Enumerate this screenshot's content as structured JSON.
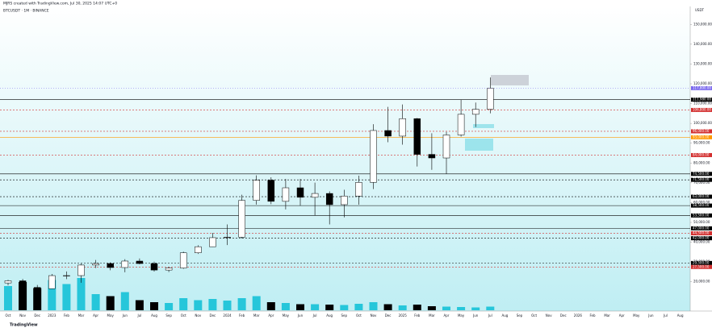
{
  "header": {
    "credit": "MJRS created with TradingView.com, Jul 30, 2025 14:07 UTC+0",
    "symbol": "BTCUSDT · 1M · BINANCE",
    "currency": "USDT",
    "brand": "TradingView"
  },
  "chart_data": {
    "type": "candlestick",
    "categories": [
      "Oct",
      "Nov",
      "Dec",
      "2023",
      "Feb",
      "Mar",
      "Apr",
      "May",
      "Jun",
      "Jul",
      "Aug",
      "Sep",
      "Oct",
      "Nov",
      "Dec",
      "2024",
      "Feb",
      "Mar",
      "Apr",
      "May",
      "Jun",
      "Jul",
      "Aug",
      "Sep",
      "Oct",
      "Nov",
      "Dec",
      "2025",
      "Feb",
      "Mar",
      "Apr",
      "May",
      "Jun",
      "Jul",
      "Aug",
      "Sep",
      "Oct",
      "Nov",
      "Dec",
      "2026",
      "Feb",
      "Mar",
      "Apr",
      "May",
      "Jun",
      "Jul",
      "Aug"
    ],
    "open": [
      19423,
      20495,
      17168,
      16548,
      23125,
      23142,
      28465,
      29233,
      27210,
      30472,
      29232,
      25940,
      26962,
      34639,
      37724,
      42284,
      42580,
      61131,
      71333,
      60636,
      67491,
      62678,
      64619,
      58974,
      63327,
      70215,
      96407,
      93576,
      102405,
      84350,
      82548,
      94172,
      104591,
      107135,
      null,
      null,
      null,
      null,
      null,
      null,
      null,
      null,
      null,
      null,
      null,
      null,
      null
    ],
    "high": [
      20988,
      21480,
      18387,
      23960,
      25250,
      29185,
      31000,
      29820,
      31432,
      31804,
      30176,
      27483,
      35198,
      38450,
      44700,
      48969,
      64000,
      73777,
      72797,
      71979,
      71997,
      70079,
      65660,
      66498,
      73620,
      99588,
      108353,
      109588,
      102750,
      95000,
      95758,
      111980,
      110530,
      123218,
      null,
      null,
      null,
      null,
      null,
      null,
      null,
      null,
      null,
      null,
      null,
      null,
      null
    ],
    "low": [
      18190,
      15476,
      16256,
      16499,
      21351,
      19549,
      26942,
      25811,
      24797,
      28861,
      25166,
      24901,
      26558,
      34097,
      37629,
      38555,
      41884,
      59005,
      59191,
      56552,
      58402,
      53485,
      49000,
      52550,
      58946,
      66835,
      90500,
      89256,
      78258,
      76555,
      74508,
      93345,
      98200,
      105100,
      null,
      null,
      null,
      null,
      null,
      null,
      null,
      null,
      null,
      null,
      null,
      null,
      null
    ],
    "close": [
      20495,
      17168,
      16548,
      23125,
      23142,
      28465,
      29233,
      27210,
      30472,
      29232,
      25940,
      26962,
      34639,
      37724,
      42284,
      42580,
      61131,
      71333,
      60636,
      67491,
      62678,
      64619,
      58974,
      63327,
      70215,
      96407,
      93576,
      102405,
      84350,
      82548,
      94172,
      104591,
      107135,
      117800,
      null,
      null,
      null,
      null,
      null,
      null,
      null,
      null,
      null,
      null,
      null,
      null,
      null
    ],
    "volume": [
      60,
      70,
      55,
      75,
      65,
      80,
      40,
      35,
      45,
      25,
      20,
      18,
      30,
      25,
      28,
      24,
      30,
      35,
      20,
      18,
      15,
      15,
      14,
      13,
      16,
      20,
      15,
      12,
      14,
      10,
      9,
      8,
      7,
      9,
      null,
      null,
      null,
      null,
      null,
      null,
      null,
      null,
      null,
      null,
      null,
      null,
      null
    ],
    "up_color": "#ffffff",
    "down_color": "#000000",
    "volume_up_color": "#26c6da",
    "volume_down_color": "#000000",
    "ylim": [
      15000,
      155000
    ],
    "yticks": [
      {
        "value": 20000,
        "label": "20,000.00"
      },
      {
        "value": 30000,
        "label": "30,000.00"
      },
      {
        "value": 40000,
        "label": "40,000.00"
      },
      {
        "value": 50000,
        "label": "50,000.00"
      },
      {
        "value": 60000,
        "label": "60,000.00"
      },
      {
        "value": 70000,
        "label": "70,000.00"
      },
      {
        "value": 80000,
        "label": "80,000.00"
      },
      {
        "value": 90000,
        "label": "90,000.00"
      },
      {
        "value": 100000,
        "label": "100,000.00"
      },
      {
        "value": 110000,
        "label": "110,000.00"
      },
      {
        "value": 120000,
        "label": "120,000.00"
      },
      {
        "value": 130000,
        "label": "130,000.00"
      },
      {
        "value": 140000,
        "label": "140,000.00"
      },
      {
        "value": 150000,
        "label": "150,000.00"
      }
    ],
    "levels": [
      {
        "value": 111980,
        "label": "111,980.00",
        "color": "#000000",
        "dash": false
      },
      {
        "value": 106800,
        "label": "106,800.00",
        "color": "#d32f2f",
        "dash": true
      },
      {
        "value": 96000,
        "label": "96,000.00",
        "color": "#d32f2f",
        "dash": true
      },
      {
        "value": 93000,
        "label": "93,000.00",
        "color": "#ff9800",
        "dash": false
      },
      {
        "value": 84000,
        "label": "84,000.00",
        "color": "#d32f2f",
        "dash": true
      },
      {
        "value": 74500,
        "label": "74,500.00",
        "color": "#000000",
        "dash": false
      },
      {
        "value": 71500,
        "label": "71,500.00",
        "color": "#000000",
        "dash": true
      },
      {
        "value": 63000,
        "label": "63,000.00",
        "color": "#000000",
        "dash": true
      },
      {
        "value": 58500,
        "label": "58,500.00",
        "color": "#000000",
        "dash": false
      },
      {
        "value": 53500,
        "label": "53,500.00",
        "color": "#000000",
        "dash": false
      },
      {
        "value": 47000,
        "label": "47,000.00",
        "color": "#000000",
        "dash": false
      },
      {
        "value": 44500,
        "label": "44,500.00",
        "color": "#d32f2f",
        "dash": true
      },
      {
        "value": 42000,
        "label": "42,000.00",
        "color": "#000000",
        "dash": true
      },
      {
        "value": 29500,
        "label": "29,500.00",
        "color": "#000000",
        "dash": true
      },
      {
        "value": 27500,
        "label": "27,500.00",
        "color": "#d32f2f",
        "dash": true
      }
    ],
    "current": {
      "value": 117800,
      "label": "117,800.00",
      "color": "#7b68ee"
    }
  }
}
